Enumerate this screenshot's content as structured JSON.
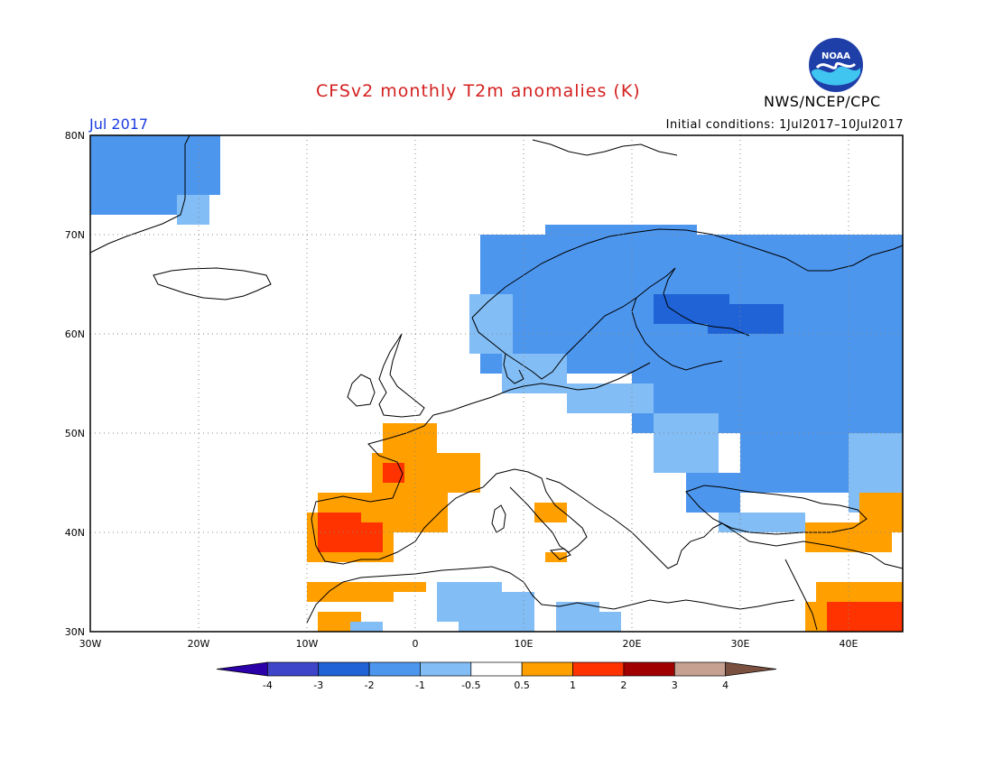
{
  "header": {
    "title": "CFSv2 monthly T2m anomalies (K)",
    "month": "Jul 2017",
    "initial_conditions": "Initial conditions: 1Jul2017–10Jul2017",
    "agency": "NWS/NCEP/CPC",
    "logo_text": "NOAA"
  },
  "colors": {
    "title": "#d42020",
    "month": "#1a3be0",
    "cb_lt_-3": "#2b00a8",
    "cb_-3_-2": "#3f45c9",
    "cb_-2_-1": "#1f63d6",
    "cb_-1_-05": "#4d96ee",
    "cb_-05_0": "#82bdf5",
    "cb_neutral": "#ffffff",
    "cb_05_1": "#ff9f00",
    "cb_1_2": "#ff3300",
    "cb_2_3": "#a00000",
    "cb_3_4": "#c6a090",
    "cb_gt_4": "#7a5040",
    "cold1": "#82bdf5",
    "cold2": "#4d96ee",
    "cold3": "#1f63d6",
    "warm1": "#ff9f00",
    "warm2": "#ff3300"
  },
  "map": {
    "lon_labels": [
      "30W",
      "20W",
      "10W",
      "0",
      "10E",
      "20E",
      "30E",
      "40E"
    ],
    "lat_labels": [
      "80N",
      "70N",
      "60N",
      "50N",
      "40N",
      "30N"
    ],
    "lon_values": [
      -30,
      -20,
      -10,
      0,
      10,
      20,
      30,
      40
    ],
    "lat_values": [
      80,
      70,
      60,
      50,
      40,
      30
    ],
    "lon_range": [
      -30,
      45
    ],
    "lat_range": [
      30,
      80
    ]
  },
  "colorbar": {
    "labels": [
      "-4",
      "-3",
      "-2",
      "-1",
      "-0.5",
      "0.5",
      "1",
      "2",
      "3",
      "4"
    ],
    "values": [
      -4,
      -3,
      -2,
      -1,
      -0.5,
      0.5,
      1,
      2,
      3,
      4
    ]
  },
  "anomaly_regions": [
    {
      "name": "greenland",
      "color": "cold2",
      "cells": [
        [
          -30,
          80,
          -22,
          72
        ],
        [
          -22,
          80,
          -18,
          74
        ]
      ]
    },
    {
      "name": "greenland-light",
      "color": "cold1",
      "cells": [
        [
          -22,
          74,
          -19,
          71
        ]
      ]
    },
    {
      "name": "scandinavia",
      "color": "cold2",
      "cells": [
        [
          6,
          70,
          32,
          56
        ],
        [
          12,
          71,
          26,
          69
        ],
        [
          32,
          70,
          45,
          52
        ],
        [
          20,
          56,
          45,
          50
        ],
        [
          30,
          50,
          40,
          44
        ],
        [
          25,
          46,
          30,
          42
        ]
      ]
    },
    {
      "name": "scandinavia-light",
      "color": "cold1",
      "cells": [
        [
          5,
          64,
          9,
          58
        ],
        [
          8,
          58,
          14,
          54
        ],
        [
          14,
          55,
          22,
          52
        ],
        [
          22,
          52,
          28,
          46
        ],
        [
          40,
          50,
          45,
          42
        ],
        [
          28,
          42,
          36,
          40
        ]
      ]
    },
    {
      "name": "finland-dark",
      "color": "cold3",
      "cells": [
        [
          22,
          64,
          29,
          61
        ],
        [
          27,
          62,
          31,
          60
        ],
        [
          29,
          63,
          34,
          60
        ]
      ]
    },
    {
      "name": "iberia-france",
      "color": "warm1",
      "cells": [
        [
          -4,
          48,
          6,
          44
        ],
        [
          -3,
          51,
          2,
          48
        ],
        [
          -9,
          44,
          3,
          40
        ],
        [
          -10,
          42,
          -5,
          37
        ],
        [
          -6,
          40,
          -2,
          37
        ],
        [
          1,
          48,
          6,
          45
        ],
        [
          11,
          43,
          14,
          41
        ],
        [
          12,
          38,
          14,
          37
        ],
        [
          36,
          41,
          44,
          38
        ],
        [
          41,
          44,
          45,
          40
        ]
      ]
    },
    {
      "name": "iberia-red",
      "color": "warm2",
      "cells": [
        [
          -9,
          42,
          -5,
          38
        ],
        [
          -5,
          41,
          -3,
          38
        ],
        [
          -3,
          47,
          -1,
          45
        ],
        [
          42,
          35,
          45,
          30
        ],
        [
          38,
          33,
          42,
          30
        ]
      ]
    },
    {
      "name": "africa-orange",
      "color": "warm1",
      "cells": [
        [
          -10,
          35,
          -2,
          33
        ],
        [
          -2,
          35,
          1,
          34
        ],
        [
          -9,
          32,
          -5,
          30
        ],
        [
          37,
          35,
          45,
          33
        ],
        [
          36,
          33,
          38,
          30
        ]
      ]
    },
    {
      "name": "africa-blue",
      "color": "cold1",
      "cells": [
        [
          2,
          35,
          8,
          31
        ],
        [
          8,
          34,
          11,
          30
        ],
        [
          13,
          33,
          17,
          30
        ],
        [
          4,
          32,
          8,
          30
        ],
        [
          17,
          32,
          19,
          30
        ],
        [
          -6,
          31,
          -3,
          30
        ]
      ]
    }
  ]
}
